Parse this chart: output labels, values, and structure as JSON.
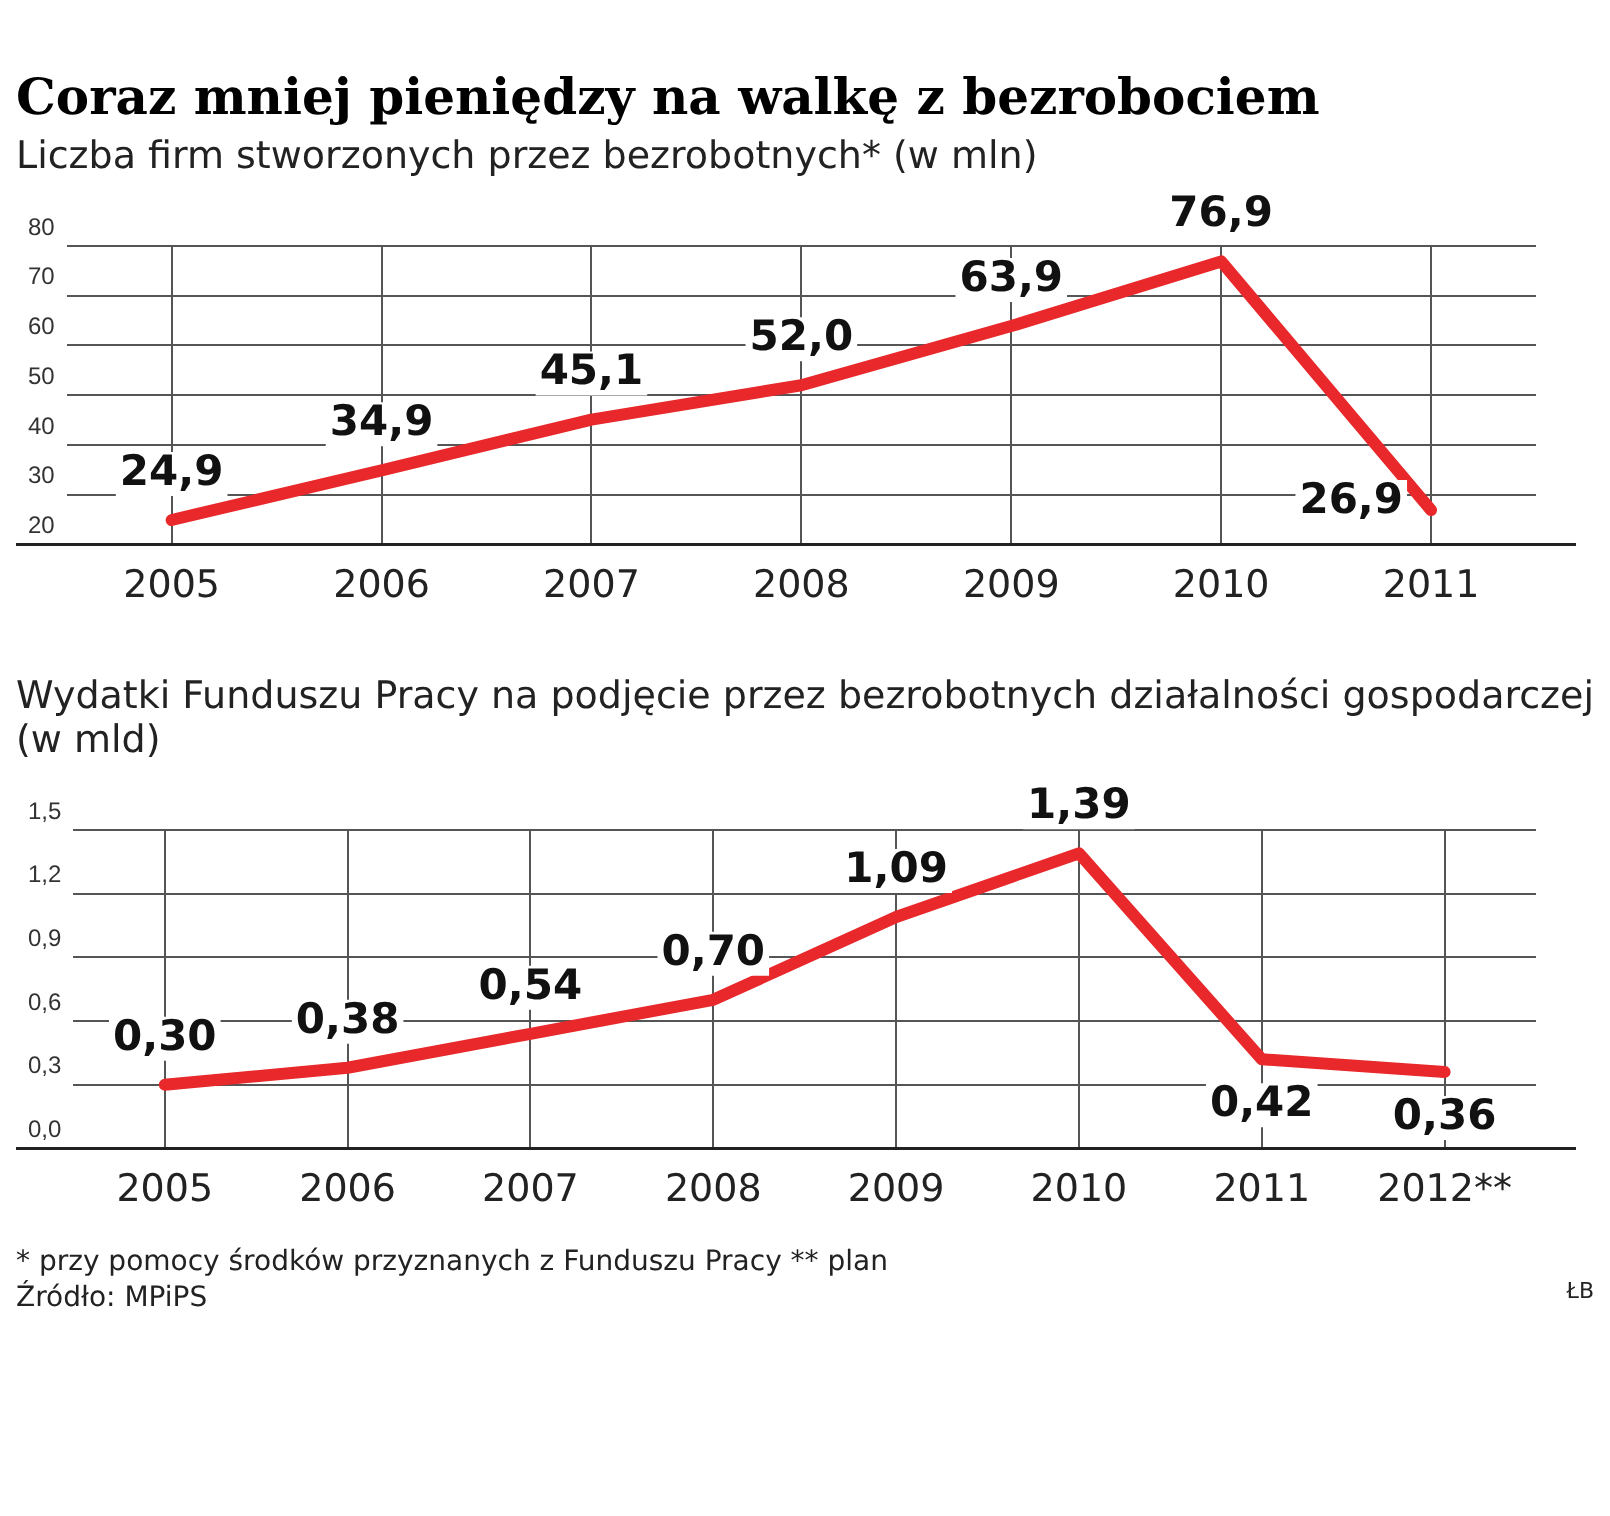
{
  "chart_data": [
    {
      "type": "line",
      "title": "Coraz mniej pieniędzy na walkę z bezrobociem",
      "subtitle": "Liczba firm stworzonych przez bezrobotnych* (w mln)",
      "categories": [
        "2005",
        "2006",
        "2007",
        "2008",
        "2009",
        "2010",
        "2011"
      ],
      "series": [
        {
          "color": "#e8282a",
          "values": [
            24.9,
            34.9,
            45.1,
            52.0,
            63.9,
            76.9,
            26.9
          ],
          "value_labels": [
            "24,9",
            "34,9",
            "45,1",
            "52,0",
            "63,9",
            "76,9",
            "26,9"
          ]
        }
      ],
      "ylim": [
        20,
        80
      ],
      "yticks": [
        20,
        30,
        40,
        50,
        60,
        70,
        80
      ],
      "grid": true,
      "legend": false,
      "marker": "none",
      "line_style": "solid"
    },
    {
      "type": "line",
      "title": "Wydatki Funduszu Pracy na podjęcie przez bezrobotnych działalności gospodarczej  (w mld)",
      "categories": [
        "2005",
        "2006",
        "2007",
        "2008",
        "2009",
        "2010",
        "2011",
        "2012**"
      ],
      "series": [
        {
          "color": "#e8282a",
          "values": [
            0.3,
            0.38,
            0.54,
            0.7,
            1.09,
            1.39,
            0.42,
            0.36
          ],
          "value_labels": [
            "0,30",
            "0,38",
            "0,54",
            "0,70",
            "1,09",
            "1,39",
            "0,42",
            "0,36"
          ]
        }
      ],
      "ylim": [
        0,
        1.5
      ],
      "yticks": [
        {
          "value": 0,
          "label": "0,0"
        },
        {
          "value": 0.3,
          "label": "0,3"
        },
        {
          "value": 0.6,
          "label": "0,6"
        },
        {
          "value": 0.9,
          "label": "0,9"
        },
        {
          "value": 1.2,
          "label": "1,2"
        },
        {
          "value": 1.5,
          "label": "1,5"
        }
      ],
      "grid": true,
      "legend": false,
      "marker": "none",
      "line_style": "solid",
      "annotations": [
        "* przy pomocy środków przyznanych z Funduszu Pracy      ** plan",
        "Źródło: MPiPS",
        "ŁB"
      ]
    }
  ]
}
